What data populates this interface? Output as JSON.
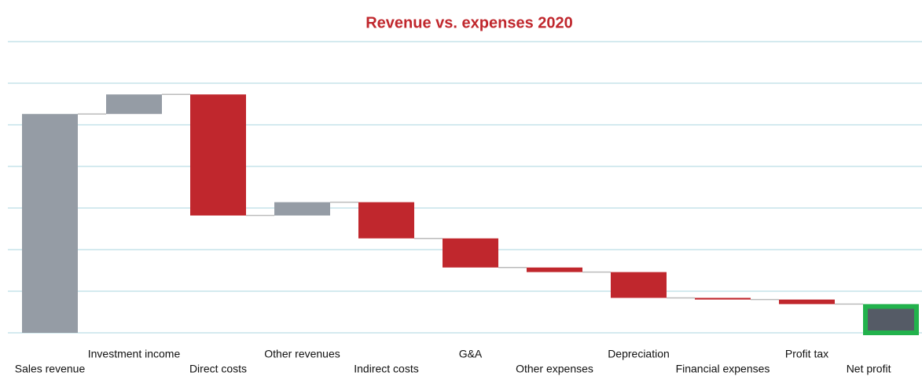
{
  "chart_data": {
    "type": "waterfall",
    "title": "Revenue vs. expenses 2020",
    "categories": [
      "Sales revenue",
      "Investment income",
      "Direct costs",
      "Other revenues",
      "Indirect costs",
      "G&A",
      "Other expenses",
      "Depreciation",
      "Financial expenses",
      "Profit tax",
      "Net profit"
    ],
    "values": [
      52.6,
      4.7,
      -29.1,
      3.2,
      -8.7,
      -7.0,
      -1.1,
      -6.2,
      -0.4,
      -1.1,
      6.9
    ],
    "measures": [
      "absolute",
      "relative",
      "relative",
      "relative",
      "relative",
      "relative",
      "relative",
      "relative",
      "relative",
      "relative",
      "total"
    ],
    "colors": {
      "increase": "#959ca5",
      "decrease": "#c0272d",
      "total": "#555b66",
      "highlight": "#22b24c"
    },
    "ylim": [
      0,
      70
    ],
    "yticks": [
      0,
      10,
      20,
      30,
      40,
      50,
      60,
      70
    ],
    "grid": true
  }
}
